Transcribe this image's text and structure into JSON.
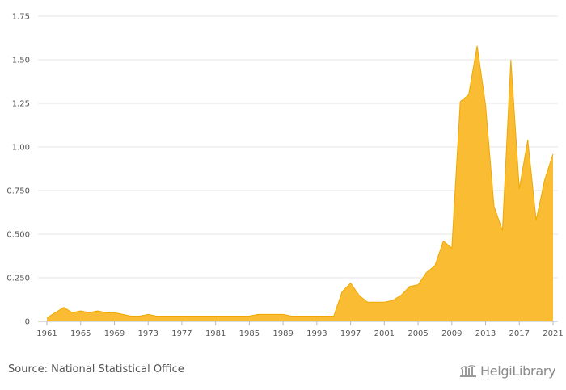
{
  "chart_data": {
    "type": "area",
    "title": "",
    "xlabel": "",
    "ylabel": "",
    "ylim": [
      0,
      1.75
    ],
    "yticks": [
      0,
      0.25,
      0.5,
      0.75,
      1.0,
      1.25,
      1.5,
      1.75
    ],
    "ytick_labels": [
      "0",
      "0.250",
      "0.500",
      "0.750",
      "1.00",
      "1.25",
      "1.50",
      "1.75"
    ],
    "xtick_labels": [
      "1961",
      "1965",
      "1969",
      "1973",
      "1977",
      "1981",
      "1985",
      "1989",
      "1993",
      "1997",
      "2001",
      "2005",
      "2009",
      "2013",
      "2017",
      "2021"
    ],
    "color": "#F9BC32",
    "stroke": "#F0A800",
    "series": [
      {
        "name": "value",
        "x": [
          1961,
          1962,
          1963,
          1964,
          1965,
          1966,
          1967,
          1968,
          1969,
          1970,
          1971,
          1972,
          1973,
          1974,
          1975,
          1976,
          1977,
          1978,
          1979,
          1980,
          1981,
          1982,
          1983,
          1984,
          1985,
          1986,
          1987,
          1988,
          1989,
          1990,
          1991,
          1992,
          1993,
          1994,
          1995,
          1996,
          1997,
          1998,
          1999,
          2000,
          2001,
          2002,
          2003,
          2004,
          2005,
          2006,
          2007,
          2008,
          2009,
          2010,
          2011,
          2012,
          2013,
          2014,
          2015,
          2016,
          2017,
          2018,
          2019,
          2020,
          2021
        ],
        "values": [
          0.02,
          0.05,
          0.08,
          0.05,
          0.06,
          0.05,
          0.06,
          0.05,
          0.05,
          0.04,
          0.03,
          0.03,
          0.04,
          0.03,
          0.03,
          0.03,
          0.03,
          0.03,
          0.03,
          0.03,
          0.03,
          0.03,
          0.03,
          0.03,
          0.03,
          0.04,
          0.04,
          0.04,
          0.04,
          0.03,
          0.03,
          0.03,
          0.03,
          0.03,
          0.03,
          0.17,
          0.22,
          0.15,
          0.11,
          0.11,
          0.11,
          0.12,
          0.15,
          0.2,
          0.21,
          0.28,
          0.32,
          0.46,
          0.42,
          1.26,
          1.3,
          1.58,
          1.24,
          0.66,
          0.52,
          1.5,
          0.76,
          1.04,
          0.58,
          0.81,
          0.96
        ]
      }
    ]
  },
  "footer": {
    "source": "Source: National Statistical Office",
    "logo_text": "HelgiLibrary"
  }
}
